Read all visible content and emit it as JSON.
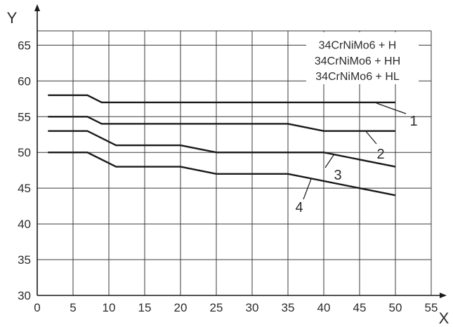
{
  "chart_data": {
    "type": "line",
    "xlabel": "X",
    "ylabel": "Y",
    "xlim": [
      0,
      55
    ],
    "ylim": [
      30,
      67
    ],
    "x_ticks": [
      0,
      5,
      10,
      15,
      20,
      25,
      30,
      35,
      40,
      45,
      50,
      55
    ],
    "y_ticks": [
      30,
      35,
      40,
      45,
      50,
      55,
      60,
      65
    ],
    "grid": true,
    "legend": {
      "placement": "top-right",
      "entries": [
        "34CrNiMo6 + H",
        "34CrNiMo6 + HH",
        "34CrNiMo6 + HL"
      ]
    },
    "series": [
      {
        "label": "1",
        "x": [
          1.5,
          7,
          9,
          50
        ],
        "y": [
          58,
          58,
          57,
          57
        ]
      },
      {
        "label": "2",
        "x": [
          1.5,
          7,
          9,
          35,
          40,
          50
        ],
        "y": [
          55,
          55,
          54,
          54,
          53,
          53
        ]
      },
      {
        "label": "3",
        "x": [
          1.5,
          7,
          11,
          20,
          25,
          40,
          50
        ],
        "y": [
          53,
          53,
          51,
          51,
          50,
          50,
          48
        ]
      },
      {
        "label": "4",
        "x": [
          1.5,
          7,
          11,
          20,
          25,
          35,
          50
        ],
        "y": [
          50,
          50,
          48,
          48,
          47,
          47,
          44
        ]
      }
    ]
  }
}
